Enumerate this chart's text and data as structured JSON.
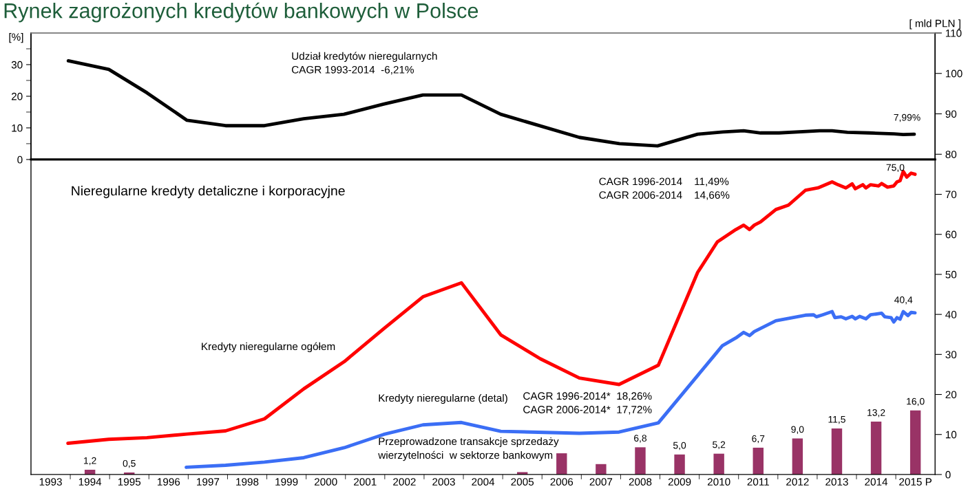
{
  "chart_data": [
    {
      "type": "line",
      "title": "Rynek zagrożonych kredytów bankowych w Polsce",
      "ylabel": "[%]",
      "y2label": "[ mld PLN ]",
      "xlim": [
        1992.5,
        2015.5
      ],
      "ylim": [
        0,
        40
      ],
      "yticks": [
        0,
        {
          "value": 5,
          "label": null
        },
        10,
        {
          "value": 15,
          "label": null
        },
        20,
        {
          "value": 25,
          "label": null
        },
        30,
        {
          "value": 35,
          "label": null
        }
      ],
      "y2lim": [
        78.7,
        110
      ],
      "y2ticks": [
        80,
        90,
        100,
        110
      ],
      "tick_labels": "y",
      "grid": false,
      "legend": false,
      "series": [
        {
          "color": "#000000",
          "x": [
            1993.45,
            1994.48,
            1995.45,
            1996.47,
            1997.45,
            1998.44,
            1999.44,
            2000.46,
            2001.47,
            2002.47,
            2003.45,
            2004.45,
            2006.45,
            2007.47,
            2008.44,
            2009.46,
            2010.1,
            2010.63,
            2011.06,
            2011.53,
            2012.56,
            2012.88,
            2013.27,
            2013.82,
            2014.45,
            2014.69,
            2014.97
          ],
          "values": [
            31.2,
            28.5,
            21.1,
            12.4,
            10.7,
            10.7,
            12.9,
            14.3,
            17.5,
            20.4,
            20.4,
            14.3,
            7.0,
            5.0,
            4.3,
            8.0,
            8.7,
            9.1,
            8.4,
            8.4,
            9.1,
            9.1,
            8.6,
            8.4,
            8.1,
            7.9,
            8.0
          ]
        }
      ],
      "annotations": [
        "Udział kredytów nieregularnych\nCAGR 1993-2014  -6,21%",
        "7,99%"
      ]
    },
    {
      "type": "line",
      "xlim": [
        1992.5,
        2015.5
      ],
      "ylim": [
        0,
        78.7
      ],
      "yticks": [
        0,
        10,
        20,
        30,
        40,
        50,
        60,
        70
      ],
      "xticks": [
        1993,
        {
          "value": 1993.5,
          "label": null
        },
        1994,
        {
          "value": 1994.5,
          "label": null
        },
        1995,
        {
          "value": 1995.5,
          "label": null
        },
        1996,
        {
          "value": 1996.5,
          "label": null
        },
        1997,
        {
          "value": 1997.5,
          "label": null
        },
        1998,
        {
          "value": 1998.5,
          "label": null
        },
        1999,
        {
          "value": 1999.5,
          "label": null
        },
        2000,
        {
          "value": 2000.5,
          "label": null
        },
        2001,
        {
          "value": 2001.5,
          "label": null
        },
        2002,
        {
          "value": 2002.5,
          "label": null
        },
        2003,
        {
          "value": 2003.5,
          "label": null
        },
        2004,
        {
          "value": 2004.5,
          "label": null
        },
        2005,
        {
          "value": 2005.5,
          "label": null
        },
        2006,
        {
          "value": 2006.5,
          "label": null
        },
        2007,
        {
          "value": 2007.5,
          "label": null
        },
        2008,
        {
          "value": 2008.5,
          "label": null
        },
        2009,
        {
          "value": 2009.5,
          "label": null
        },
        2010,
        {
          "value": 2010.5,
          "label": null
        },
        2011,
        {
          "value": 2011.5,
          "label": null
        },
        2012,
        {
          "value": 2012.5,
          "label": null
        },
        2013,
        {
          "value": 2013.5,
          "label": null
        },
        2014,
        {
          "value": 2014.5,
          "label": null
        },
        {
          "value": 2015,
          "label": "2015 P"
        }
      ],
      "grid": false,
      "legend": false,
      "series": [
        {
          "name": "Kredyty nieregularne ogółem",
          "color": "#ff0000",
          "x": [
            1993.44,
            1994.48,
            1995.45,
            1996.47,
            1997.45,
            1998.44,
            1999.44,
            2000.47,
            2001.47,
            2002.47,
            2003.45,
            2004.45,
            2005.46,
            2006.45,
            2007.46,
            2008.46,
            2009.46,
            2009.96,
            2010.43,
            2010.63,
            2010.78,
            2010.9,
            2011.06,
            2011.45,
            2011.77,
            2012.2,
            2012.52,
            2012.88,
            2013.03,
            2013.23,
            2013.39,
            2013.47,
            2013.66,
            2013.74,
            2013.86,
            2014.06,
            2014.14,
            2014.29,
            2014.45,
            2014.53,
            2014.61,
            2014.69,
            2014.78,
            2014.89,
            2014.99
          ],
          "values": [
            7.8,
            8.8,
            9.2,
            10.1,
            10.9,
            13.9,
            21.4,
            28.2,
            36.4,
            44.4,
            47.9,
            34.9,
            28.9,
            24.1,
            22.5,
            27.3,
            50.5,
            58.1,
            61.2,
            62.3,
            61.2,
            62.3,
            63.1,
            66.2,
            67.3,
            71.0,
            71.6,
            73.1,
            72.4,
            71.6,
            72.6,
            71.4,
            72.4,
            71.6,
            72.4,
            72.1,
            72.7,
            71.8,
            72.1,
            73.1,
            73.4,
            75.7,
            74.3,
            75.3,
            75.0
          ]
        },
        {
          "name": "Kredyty nieregularne (detal)",
          "color": "#3b6ef5",
          "x": [
            1996.45,
            1997.45,
            1998.44,
            1999.44,
            2000.47,
            2001.47,
            2002.47,
            2003.45,
            2004.45,
            2006.45,
            2007.46,
            2008.46,
            2009.93,
            2010.09,
            2010.43,
            2010.63,
            2010.78,
            2010.9,
            2011.45,
            2012.2,
            2012.41,
            2012.48,
            2012.64,
            2012.88,
            2012.95,
            2013.11,
            2013.23,
            2013.39,
            2013.47,
            2013.58,
            2013.74,
            2013.86,
            2014.14,
            2014.22,
            2014.38,
            2014.45,
            2014.53,
            2014.61,
            2014.69,
            2014.81,
            2014.89,
            2014.99
          ],
          "values": [
            1.8,
            2.3,
            3.1,
            4.2,
            6.7,
            10.0,
            12.4,
            13.0,
            10.8,
            10.3,
            10.6,
            12.9,
            30.3,
            32.2,
            34.1,
            35.5,
            34.7,
            35.7,
            38.4,
            39.8,
            39.9,
            39.4,
            39.9,
            40.7,
            39.2,
            39.4,
            38.9,
            39.5,
            38.9,
            39.5,
            38.9,
            39.9,
            40.3,
            39.4,
            39.2,
            38.1,
            39.2,
            38.8,
            40.7,
            39.7,
            40.5,
            40.4
          ]
        },
        {
          "name": "Przeprowadzone transakcje sprzedaży\nwierzytelności  w sektorze bankowym",
          "type": "bar",
          "color": "#993366",
          "x": [
            1994,
            1995,
            1996,
            1997,
            1998,
            1999,
            2000,
            2001,
            2002,
            2003,
            2004,
            2005,
            2006,
            2007,
            2008,
            2009,
            2010,
            2011,
            2012,
            2013,
            2014,
            2015
          ],
          "values": [
            1.2,
            0.5,
            null,
            null,
            null,
            null,
            null,
            null,
            null,
            null,
            null,
            0.6,
            5.3,
            2.6,
            6.8,
            5.0,
            5.2,
            6.7,
            9.0,
            11.5,
            13.2,
            16.0
          ],
          "value_labels": [
            "1,2",
            "0,5",
            null,
            null,
            null,
            null,
            null,
            null,
            null,
            null,
            null,
            null,
            null,
            null,
            "6,8",
            "5,0",
            "5,2",
            "6,7",
            "9,0",
            "11,5",
            "13,2",
            "16,0"
          ]
        }
      ],
      "annotations": [
        "Nieregularne kredyty detaliczne i korporacyjne",
        "CAGR 1996-2014    11,49%\nCAGR 2006-2014    14,66%",
        "CAGR 1996-2014*  18,26%\nCAGR 2006-2014*  17,72%",
        "75,0",
        "40,4"
      ]
    }
  ]
}
